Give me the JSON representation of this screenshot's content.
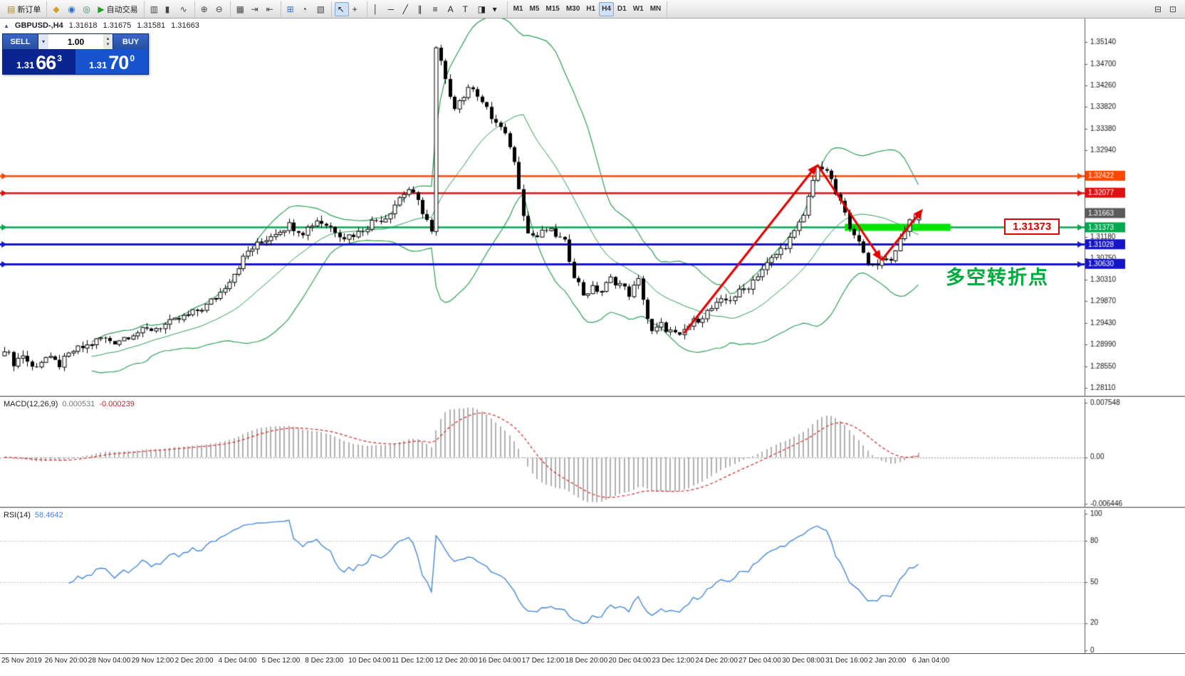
{
  "toolbar": {
    "groups": [
      {
        "name": "order-group",
        "items": [
          {
            "name": "new-order-button",
            "glyph": "▤",
            "color": "#b8860b",
            "label": "新订单"
          }
        ]
      },
      {
        "name": "apps-group",
        "items": [
          {
            "name": "metaeditor-button",
            "glyph": "◆",
            "color": "#d4a017"
          },
          {
            "name": "market-watch-button",
            "glyph": "◉",
            "color": "#2e6bc4"
          },
          {
            "name": "terminal-button",
            "glyph": "◎",
            "color": "#2e8b57"
          },
          {
            "name": "auto-trading-button",
            "glyph": "▶",
            "color": "#18a41c",
            "label": "自动交易"
          }
        ]
      },
      {
        "name": "chart-type-group",
        "items": [
          {
            "name": "bar-chart-button",
            "glyph": "▥",
            "color": "#444"
          },
          {
            "name": "candlestick-chart-button",
            "glyph": "▮",
            "color": "#444"
          },
          {
            "name": "line-chart-button",
            "glyph": "∿",
            "color": "#444"
          }
        ]
      },
      {
        "name": "zoom-group",
        "items": [
          {
            "name": "zoom-in-button",
            "glyph": "⊕",
            "color": "#444"
          },
          {
            "name": "zoom-out-button",
            "glyph": "⊖",
            "color": "#444"
          }
        ]
      },
      {
        "name": "chart-mode-group",
        "items": [
          {
            "name": "tile-windows-button",
            "glyph": "▦",
            "color": "#444"
          },
          {
            "name": "auto-scroll-button",
            "glyph": "⇥",
            "color": "#444"
          },
          {
            "name": "chart-shift-button",
            "glyph": "⇤",
            "color": "#444"
          }
        ]
      },
      {
        "name": "insert-group",
        "items": [
          {
            "name": "indicators-button",
            "glyph": "⊞",
            "color": "#2e6bc4"
          },
          {
            "name": "periods-button",
            "glyph": "◔",
            "color": "#444"
          },
          {
            "name": "templates-button",
            "glyph": "▧",
            "color": "#444"
          }
        ]
      },
      {
        "name": "cursor-group",
        "items": [
          {
            "name": "cursor-button",
            "glyph": "↖",
            "color": "#222",
            "active": true
          },
          {
            "name": "crosshair-button",
            "glyph": "+",
            "color": "#222"
          }
        ]
      },
      {
        "name": "draw-group",
        "items": [
          {
            "name": "vertical-line-button",
            "glyph": "│",
            "color": "#222"
          },
          {
            "name": "horizontal-line-button",
            "glyph": "─",
            "color": "#222"
          },
          {
            "name": "trendline-button",
            "glyph": "╱",
            "color": "#222"
          },
          {
            "name": "equidistant-channel-button",
            "glyph": "∥",
            "color": "#222"
          },
          {
            "name": "fibonacci-button",
            "glyph": "≡",
            "color": "#222"
          },
          {
            "name": "text-button",
            "glyph": "A",
            "color": "#222"
          },
          {
            "name": "text-label-button",
            "glyph": "T",
            "color": "#222"
          },
          {
            "name": "arrows-button",
            "glyph": "◨",
            "color": "#222"
          },
          {
            "name": "shapes-dropdown",
            "glyph": "▾",
            "color": "#222"
          }
        ]
      },
      {
        "name": "timeframes-group",
        "items": [
          {
            "name": "tf-m1-button",
            "label": "M1",
            "tf": true
          },
          {
            "name": "tf-m5-button",
            "label": "M5",
            "tf": true
          },
          {
            "name": "tf-m15-button",
            "label": "M15",
            "tf": true
          },
          {
            "name": "tf-m30-button",
            "label": "M30",
            "tf": true
          },
          {
            "name": "tf-h1-button",
            "label": "H1",
            "tf": true
          },
          {
            "name": "tf-h4-button",
            "label": "H4",
            "tf": true,
            "active": true
          },
          {
            "name": "tf-d1-button",
            "label": "D1",
            "tf": true
          },
          {
            "name": "tf-w1-button",
            "label": "W1",
            "tf": true
          },
          {
            "name": "tf-mn-button",
            "label": "MN",
            "tf": true
          }
        ]
      },
      {
        "name": "right-tools-group",
        "right": true,
        "items": [
          {
            "name": "chart-profile-button",
            "glyph": "⊟",
            "color": "#444"
          },
          {
            "name": "fullscreen-button",
            "glyph": "⊡",
            "color": "#444"
          }
        ]
      }
    ]
  },
  "chart": {
    "title": "GBPUSD-,H4",
    "ohlc": {
      "open": "1.31618",
      "high": "1.31675",
      "low": "1.31581",
      "close": "1.31663"
    },
    "trade_panel": {
      "sell_label": "SELL",
      "buy_label": "BUY",
      "volume": "1.00",
      "sell_price_small": "1.31",
      "sell_price_big": "66",
      "sell_price_sup": "3",
      "buy_price_small": "1.31",
      "buy_price_big": "70",
      "buy_price_sup": "0"
    },
    "callout": "1.31373",
    "annotation": "多空转折点"
  },
  "macd": {
    "label": "MACD(12,26,9)",
    "value_main": "0.000531",
    "value_signal": "-0.000239"
  },
  "rsi": {
    "label": "RSI(14)",
    "value": "58.4642"
  },
  "time_axis": {
    "labels": [
      "25 Nov 2019",
      "26 Nov 20:00",
      "28 Nov 04:00",
      "29 Nov 12:00",
      "2 Dec 20:00",
      "4 Dec 04:00",
      "5 Dec 12:00",
      "8 Dec 23:00",
      "10 Dec 04:00",
      "11 Dec 12:00",
      "12 Dec 20:00",
      "16 Dec 04:00",
      "17 Dec 12:00",
      "18 Dec 20:00",
      "20 Dec 04:00",
      "23 Dec 12:00",
      "24 Dec 20:00",
      "27 Dec 04:00",
      "30 Dec 08:00",
      "31 Dec 16:00",
      "2 Jan 20:00",
      "6 Jan 04:00"
    ]
  },
  "chart_data": {
    "type": "candlestick",
    "symbol": "GBPUSD-",
    "period": "H4",
    "n_candles": 200,
    "last_price": 1.31663,
    "price_waypoints": [
      [
        0,
        1.2892
      ],
      [
        2,
        1.2862
      ],
      [
        4,
        1.2878
      ],
      [
        6,
        1.2852
      ],
      [
        9,
        1.2872
      ],
      [
        12,
        1.2858
      ],
      [
        15,
        1.2886
      ],
      [
        18,
        1.2896
      ],
      [
        21,
        1.2912
      ],
      [
        24,
        1.2905
      ],
      [
        28,
        1.2922
      ],
      [
        32,
        1.293
      ],
      [
        36,
        1.2942
      ],
      [
        40,
        1.2958
      ],
      [
        44,
        1.2978
      ],
      [
        47,
        1.3005
      ],
      [
        50,
        1.3045
      ],
      [
        53,
        1.3088
      ],
      [
        56,
        1.3108
      ],
      [
        59,
        1.3128
      ],
      [
        62,
        1.3142
      ],
      [
        65,
        1.3128
      ],
      [
        68,
        1.3152
      ],
      [
        71,
        1.3138
      ],
      [
        74,
        1.3118
      ],
      [
        77,
        1.3126
      ],
      [
        80,
        1.3148
      ],
      [
        83,
        1.3158
      ],
      [
        86,
        1.3198
      ],
      [
        88,
        1.3215
      ],
      [
        90,
        1.3188
      ],
      [
        92,
        1.3152
      ],
      [
        93,
        1.3125
      ],
      [
        94,
        1.3498
      ],
      [
        95,
        1.3472
      ],
      [
        96,
        1.3432
      ],
      [
        98,
        1.3385
      ],
      [
        100,
        1.3405
      ],
      [
        102,
        1.3425
      ],
      [
        104,
        1.3392
      ],
      [
        106,
        1.336
      ],
      [
        108,
        1.3338
      ],
      [
        110,
        1.3305
      ],
      [
        111,
        1.3268
      ],
      [
        112,
        1.3222
      ],
      [
        113,
        1.3168
      ],
      [
        114,
        1.3125
      ],
      [
        116,
        1.3118
      ],
      [
        118,
        1.3132
      ],
      [
        120,
        1.3122
      ],
      [
        122,
        1.3105
      ],
      [
        124,
        1.3042
      ],
      [
        126,
        1.3002
      ],
      [
        128,
        1.3012
      ],
      [
        130,
        1.3008
      ],
      [
        132,
        1.3032
      ],
      [
        134,
        1.3022
      ],
      [
        136,
        1.3002
      ],
      [
        138,
        1.3028
      ],
      [
        139,
        1.2995
      ],
      [
        140,
        1.2952
      ],
      [
        141,
        1.2922
      ],
      [
        143,
        1.2938
      ],
      [
        145,
        1.2925
      ],
      [
        147,
        1.2912
      ],
      [
        148,
        1.2928
      ],
      [
        150,
        1.2945
      ],
      [
        152,
        1.2958
      ],
      [
        154,
        1.2972
      ],
      [
        156,
        1.2985
      ],
      [
        158,
        1.2992
      ],
      [
        160,
        1.3005
      ],
      [
        162,
        1.3018
      ],
      [
        164,
        1.3042
      ],
      [
        166,
        1.3062
      ],
      [
        168,
        1.3082
      ],
      [
        170,
        1.3102
      ],
      [
        172,
        1.3125
      ],
      [
        174,
        1.3162
      ],
      [
        175,
        1.3198
      ],
      [
        176,
        1.3238
      ],
      [
        177,
        1.3262
      ],
      [
        178,
        1.3248
      ],
      [
        179,
        1.3255
      ],
      [
        180,
        1.3228
      ],
      [
        181,
        1.3205
      ],
      [
        182,
        1.3188
      ],
      [
        183,
        1.3162
      ],
      [
        184,
        1.3142
      ],
      [
        185,
        1.3128
      ],
      [
        186,
        1.3102
      ],
      [
        187,
        1.3082
      ],
      [
        188,
        1.3062
      ],
      [
        189,
        1.3068
      ],
      [
        190,
        1.3058
      ],
      [
        191,
        1.3078
      ],
      [
        192,
        1.3072
      ],
      [
        193,
        1.3076
      ],
      [
        194,
        1.3082
      ],
      [
        195,
        1.3112
      ],
      [
        196,
        1.3132
      ],
      [
        197,
        1.3148
      ],
      [
        198,
        1.3158
      ],
      [
        199,
        1.3166
      ]
    ],
    "y_axis": {
      "min": 1.2795,
      "max": 1.3562,
      "ticks": [
        "1.35140",
        "1.34700",
        "1.34260",
        "1.33820",
        "1.33380",
        "1.32940",
        "1.31180",
        "1.30750",
        "1.30310",
        "1.29870",
        "1.29430",
        "1.28990",
        "1.28550",
        "1.28110"
      ]
    },
    "price_badges": [
      {
        "value": "1.32422",
        "color": "#ff4800"
      },
      {
        "value": "1.32077",
        "color": "#dd1111"
      },
      {
        "value": "1.31663",
        "color": "#5a5a5a"
      },
      {
        "value": "1.31373",
        "color": "#00a84f"
      },
      {
        "value": "1.31028",
        "color": "#1414c8"
      },
      {
        "value": "1.30630",
        "color": "#1414c8"
      }
    ],
    "hlines": [
      {
        "price": 1.32422,
        "color": "#ff4800",
        "width": 2.5
      },
      {
        "price": 1.32077,
        "color": "#dd1111",
        "width": 2.5
      },
      {
        "price": 1.31373,
        "color": "#00a84f",
        "width": 2.5
      },
      {
        "price": 1.31028,
        "color": "#1414c8",
        "width": 3
      },
      {
        "price": 1.3063,
        "color": "#1414c8",
        "width": 3
      }
    ],
    "bollinger": {
      "period": 20,
      "deviation": 2,
      "color": "#2d9e57"
    },
    "highlight_rect": {
      "from_idx": 183,
      "to_idx": 206,
      "price": 1.31373,
      "color": "#00e400",
      "half_height": 5
    },
    "trend_arrows": {
      "color": "#e00000",
      "width": 3,
      "segments": [
        {
          "from": [
            148,
            1.2922
          ],
          "to": [
            177,
            1.3265
          ]
        },
        {
          "from": [
            177,
            1.3265
          ],
          "to": [
            191,
            1.307
          ]
        },
        {
          "from": [
            191,
            1.307
          ],
          "to": [
            200,
            1.3175
          ]
        }
      ]
    },
    "macd_axis": [
      "0.007548",
      "0.00",
      "-0.006446"
    ],
    "rsi_axis": [
      "100",
      "80",
      "50",
      "20",
      "0"
    ],
    "rsi_levels": [
      80,
      50,
      20
    ]
  }
}
